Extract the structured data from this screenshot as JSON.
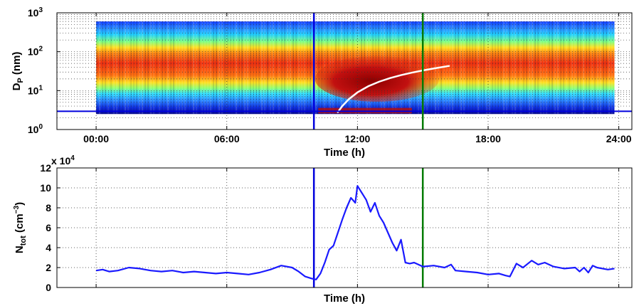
{
  "chart_data": [
    {
      "type": "heatmap",
      "xlabel": "Time (h)",
      "ylabel": "D_P (nm)",
      "ylabel_main": "D",
      "ylabel_sub": "P",
      "ylabel_unit": "(nm)",
      "yscale": "log",
      "xlim": [
        -1.8,
        24.6
      ],
      "ylim": [
        1,
        1000
      ],
      "x_ticks": [
        {
          "value": 0,
          "label": "00:00"
        },
        {
          "value": 6,
          "label": "06:00"
        },
        {
          "value": 12,
          "label": "12:00"
        },
        {
          "value": 18,
          "label": "18:00"
        },
        {
          "value": 24,
          "label": "24:00"
        }
      ],
      "y_ticks": [
        {
          "value": 1,
          "base": "10",
          "exp": "0"
        },
        {
          "value": 10,
          "base": "10",
          "exp": "1"
        },
        {
          "value": 100,
          "base": "10",
          "exp": "2"
        },
        {
          "value": 1000,
          "base": "10",
          "exp": "3"
        }
      ],
      "grid": true,
      "data_x_range": [
        0,
        23.8
      ],
      "data_y_range": [
        2.5,
        600
      ],
      "growth_curve_x_range": [
        11.1,
        16.2
      ],
      "growth_curve": [
        [
          11.1,
          2.8
        ],
        [
          11.3,
          4.0
        ],
        [
          11.6,
          6.0
        ],
        [
          12.0,
          9.0
        ],
        [
          12.5,
          13.0
        ],
        [
          13.0,
          17.0
        ],
        [
          13.5,
          21.0
        ],
        [
          14.0,
          25.0
        ],
        [
          14.5,
          29.0
        ],
        [
          15.0,
          33.0
        ],
        [
          15.5,
          37.0
        ],
        [
          16.2,
          43.0
        ]
      ],
      "vertical_lines": [
        {
          "x": 10.0,
          "color": "#0000dd"
        },
        {
          "x": 15.0,
          "color": "#007a00"
        }
      ],
      "horizontal_line": {
        "y": 2.95,
        "color": "#0000dd"
      }
    },
    {
      "type": "line",
      "xlabel": "Time (h)",
      "ylabel": "N_tot (cm^-3)",
      "ylabel_main": "N",
      "ylabel_sub": "tot",
      "ylabel_unit_open": "(cm",
      "ylabel_unit_exp": "−3",
      "ylabel_unit_close": ")",
      "y_multiplier": "x 10",
      "y_multiplier_exp": "4",
      "xlim": [
        -1.8,
        24.6
      ],
      "ylim": [
        0,
        12
      ],
      "y_ticks": [
        {
          "value": 0,
          "label": "0"
        },
        {
          "value": 2,
          "label": "2"
        },
        {
          "value": 4,
          "label": "4"
        },
        {
          "value": 6,
          "label": "6"
        },
        {
          "value": 8,
          "label": "8"
        },
        {
          "value": 10,
          "label": "10"
        },
        {
          "value": 12,
          "label": "12"
        }
      ],
      "x_grid": [
        0,
        6,
        12,
        18,
        24
      ],
      "grid": true,
      "series": [
        {
          "color": "#1a1aff",
          "x": [
            0.0,
            0.3,
            0.6,
            1.0,
            1.5,
            2.0,
            2.5,
            3.0,
            3.5,
            4.0,
            4.5,
            5.0,
            5.5,
            6.0,
            6.5,
            7.0,
            7.5,
            8.0,
            8.5,
            9.0,
            9.3,
            9.6,
            9.9,
            10.1,
            10.3,
            10.5,
            10.7,
            10.9,
            11.1,
            11.3,
            11.5,
            11.7,
            11.9,
            12.0,
            12.2,
            12.4,
            12.6,
            12.8,
            13.0,
            13.2,
            13.4,
            13.6,
            13.8,
            14.0,
            14.2,
            14.4,
            14.6,
            14.8,
            15.0,
            15.5,
            16.0,
            16.3,
            16.5,
            17.0,
            17.5,
            18.0,
            18.5,
            18.8,
            19.0,
            19.3,
            19.6,
            20.0,
            20.3,
            20.6,
            21.0,
            21.5,
            22.0,
            22.2,
            22.4,
            22.6,
            22.8,
            23.0,
            23.5,
            23.8
          ],
          "y": [
            1.7,
            1.8,
            1.6,
            1.7,
            2.0,
            1.9,
            1.7,
            1.6,
            1.7,
            1.5,
            1.6,
            1.5,
            1.4,
            1.5,
            1.4,
            1.3,
            1.5,
            1.8,
            2.2,
            2.0,
            1.6,
            1.1,
            0.9,
            0.8,
            1.4,
            2.5,
            3.8,
            4.2,
            5.5,
            6.8,
            8.0,
            9.0,
            8.5,
            10.2,
            9.5,
            8.8,
            7.6,
            8.5,
            7.2,
            6.5,
            5.5,
            4.5,
            3.7,
            4.8,
            2.5,
            2.4,
            2.5,
            2.3,
            2.1,
            2.2,
            2.0,
            2.3,
            1.7,
            1.6,
            1.5,
            1.3,
            1.4,
            1.2,
            1.1,
            2.4,
            2.0,
            2.7,
            2.3,
            2.5,
            2.1,
            1.9,
            2.0,
            1.6,
            2.0,
            1.5,
            2.2,
            2.0,
            1.8,
            1.9
          ]
        }
      ],
      "vertical_lines": [
        {
          "x": 10.0,
          "color": "#0000dd"
        },
        {
          "x": 15.0,
          "color": "#007a00"
        }
      ]
    }
  ]
}
